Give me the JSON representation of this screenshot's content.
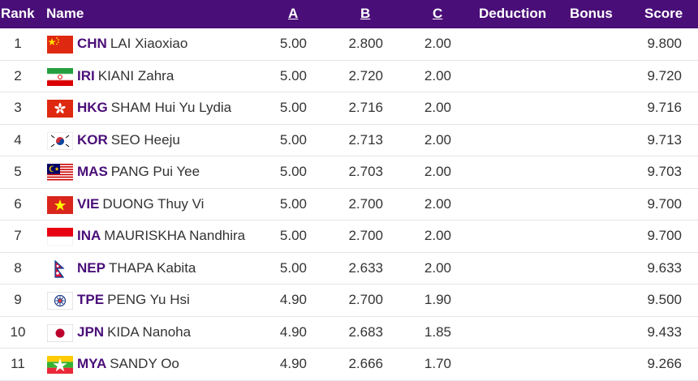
{
  "columns": {
    "rank": "Rank",
    "name": "Name",
    "a": "A",
    "b": "B",
    "c": "C",
    "deduction": "Deduction",
    "bonus": "Bonus",
    "score": "Score"
  },
  "rows": [
    {
      "rank": "1",
      "noc": "CHN",
      "name": "LAI Xiaoxiao",
      "a": "5.00",
      "b": "2.800",
      "c": "2.00",
      "score": "9.800",
      "flag_icon": "china-flag-icon"
    },
    {
      "rank": "2",
      "noc": "IRI",
      "name": "KIANI Zahra",
      "a": "5.00",
      "b": "2.720",
      "c": "2.00",
      "score": "9.720",
      "flag_icon": "iran-flag-icon"
    },
    {
      "rank": "3",
      "noc": "HKG",
      "name": "SHAM Hui Yu Lydia",
      "a": "5.00",
      "b": "2.716",
      "c": "2.00",
      "score": "9.716",
      "flag_icon": "hong-kong-flag-icon"
    },
    {
      "rank": "4",
      "noc": "KOR",
      "name": "SEO Heeju",
      "a": "5.00",
      "b": "2.713",
      "c": "2.00",
      "score": "9.713",
      "flag_icon": "korea-flag-icon"
    },
    {
      "rank": "5",
      "noc": "MAS",
      "name": "PANG Pui Yee",
      "a": "5.00",
      "b": "2.703",
      "c": "2.00",
      "score": "9.703",
      "flag_icon": "malaysia-flag-icon"
    },
    {
      "rank": "6",
      "noc": "VIE",
      "name": "DUONG Thuy Vi",
      "a": "5.00",
      "b": "2.700",
      "c": "2.00",
      "score": "9.700",
      "flag_icon": "vietnam-flag-icon"
    },
    {
      "rank": "7",
      "noc": "INA",
      "name": "MAURISKHA Nandhira",
      "a": "5.00",
      "b": "2.700",
      "c": "2.00",
      "score": "9.700",
      "flag_icon": "indonesia-flag-icon"
    },
    {
      "rank": "8",
      "noc": "NEP",
      "name": "THAPA Kabita",
      "a": "5.00",
      "b": "2.633",
      "c": "2.00",
      "score": "9.633",
      "flag_icon": "nepal-flag-icon"
    },
    {
      "rank": "9",
      "noc": "TPE",
      "name": "PENG Yu Hsi",
      "a": "4.90",
      "b": "2.700",
      "c": "1.90",
      "score": "9.500",
      "flag_icon": "chinese-taipei-flag-icon"
    },
    {
      "rank": "10",
      "noc": "JPN",
      "name": "KIDA Nanoha",
      "a": "4.90",
      "b": "2.683",
      "c": "1.85",
      "score": "9.433",
      "flag_icon": "japan-flag-icon"
    },
    {
      "rank": "11",
      "noc": "MYA",
      "name": "SANDY Oo",
      "a": "4.90",
      "b": "2.666",
      "c": "1.70",
      "score": "9.266",
      "flag_icon": "myanmar-flag-icon"
    }
  ],
  "colors": {
    "header_bg": "#4a0e78",
    "header_text": "#ffffff",
    "noc_text": "#4a0e78",
    "body_text": "#333333",
    "row_divider": "#e4e4e4"
  }
}
